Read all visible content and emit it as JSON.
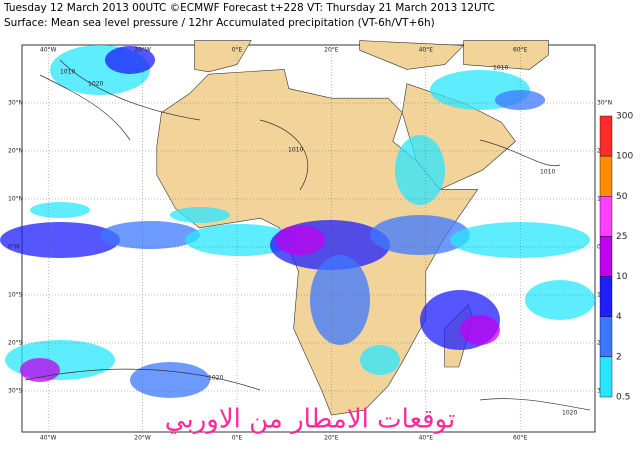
{
  "header": {
    "line1": "Tuesday 12 March 2013 00UTC ©ECMWF Forecast t+228 VT: Thursday 21 March 2013 12UTC",
    "line2": "Surface: Mean sea level pressure / 12hr Accumulated precipitation (VT-6h/VT+6h)"
  },
  "map": {
    "lon_labels": [
      "40°W",
      "20°W",
      "0°E",
      "20°E",
      "40°E",
      "60°E"
    ],
    "lat_labels": [
      "30°N",
      "20°N",
      "10°N",
      "0°N",
      "10°S",
      "20°S",
      "30°S"
    ],
    "isobar_labels": [
      "1020",
      "1010",
      "1010",
      "1010",
      "1020",
      "1020",
      "1010"
    ],
    "watermark": "توقعات الامطار من الاوربي"
  },
  "legend": {
    "levels": [
      300,
      100,
      50,
      25,
      10,
      4,
      2,
      0.5
    ],
    "colors": [
      "#ff2a2a",
      "#ff8c00",
      "#ff40ff",
      "#c000f0",
      "#1e1eff",
      "#3c78ff",
      "#28e6ff"
    ]
  }
}
